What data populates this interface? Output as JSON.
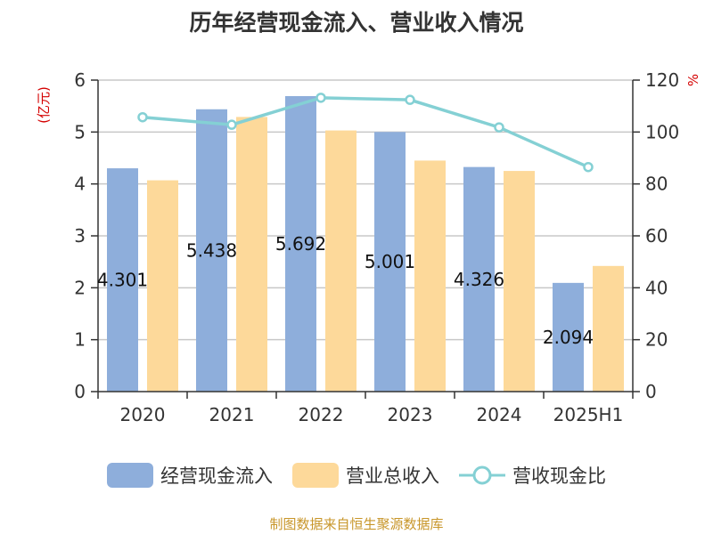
{
  "chart_data": {
    "type": "bar",
    "title": "历年经营现金流入、营业收入情况",
    "categories": [
      "2020",
      "2021",
      "2022",
      "2023",
      "2024",
      "2025H1"
    ],
    "y_left_unit": "(亿元)",
    "y_right_unit": "%",
    "ylim_left": [
      0,
      6
    ],
    "ylim_right": [
      0,
      120
    ],
    "yticks_left": [
      0,
      1,
      2,
      3,
      4,
      5,
      6
    ],
    "yticks_right": [
      0,
      20,
      40,
      60,
      80,
      100,
      120
    ],
    "grid": true,
    "legend_position": "bottom",
    "series": [
      {
        "name": "经营现金流入",
        "type": "bar",
        "axis": "left",
        "color": "#8eaedb",
        "values": [
          4.301,
          5.438,
          5.692,
          5.001,
          4.326,
          2.094
        ],
        "labels": [
          "4.301",
          "5.438",
          "5.692",
          "5.001",
          "4.326",
          "2.094"
        ]
      },
      {
        "name": "营业总收入",
        "type": "bar",
        "axis": "left",
        "color": "#fdd99a",
        "values": [
          4.07,
          5.29,
          5.03,
          4.45,
          4.25,
          2.42
        ]
      },
      {
        "name": "营收现金比",
        "type": "line",
        "axis": "right",
        "color": "#84d0d4",
        "values": [
          105.7,
          102.8,
          113.2,
          112.4,
          101.8,
          86.5
        ]
      }
    ]
  },
  "footer": {
    "source": "制图数据来自恒生聚源数据库"
  }
}
